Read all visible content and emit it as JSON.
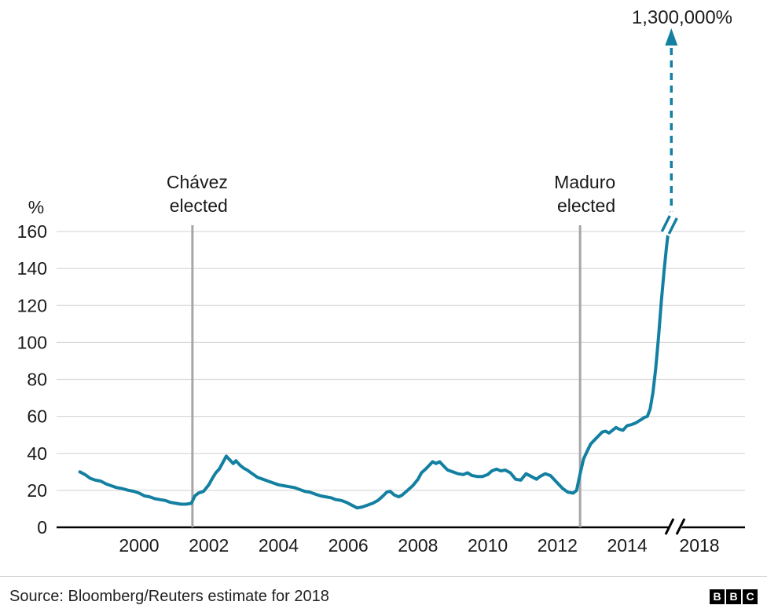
{
  "chart_data": {
    "type": "line",
    "title": "",
    "xlabel": "",
    "ylabel": "%",
    "ylim": [
      0,
      160
    ],
    "y_ticks": [
      0,
      20,
      40,
      60,
      80,
      100,
      120,
      140,
      160
    ],
    "x_ticks": [
      "2000",
      "2002",
      "2004",
      "2006",
      "2008",
      "2010",
      "2012",
      "2014"
    ],
    "x_tick_after_break": "2018",
    "axis_break": true,
    "grid": "horizontal",
    "series": [
      {
        "name": "inflation-rate",
        "color": "#1380a1",
        "points": [
          [
            1998.3,
            30
          ],
          [
            1998.45,
            28.5
          ],
          [
            1998.6,
            26.5
          ],
          [
            1998.75,
            25.5
          ],
          [
            1998.9,
            25
          ],
          [
            1999.05,
            23.5
          ],
          [
            1999.2,
            22.5
          ],
          [
            1999.35,
            21.5
          ],
          [
            1999.5,
            21
          ],
          [
            1999.7,
            20
          ],
          [
            1999.85,
            19.5
          ],
          [
            2000.0,
            18.5
          ],
          [
            2000.15,
            17
          ],
          [
            2000.3,
            16.5
          ],
          [
            2000.45,
            15.5
          ],
          [
            2000.6,
            15
          ],
          [
            2000.75,
            14.5
          ],
          [
            2000.9,
            13.5
          ],
          [
            2001.05,
            13
          ],
          [
            2001.2,
            12.5
          ],
          [
            2001.35,
            12.5
          ],
          [
            2001.5,
            13
          ],
          [
            2001.6,
            17
          ],
          [
            2001.7,
            18.5
          ],
          [
            2001.85,
            19.5
          ],
          [
            2002.0,
            23
          ],
          [
            2002.1,
            26.5
          ],
          [
            2002.2,
            29.5
          ],
          [
            2002.3,
            31.5
          ],
          [
            2002.4,
            35
          ],
          [
            2002.5,
            38.5
          ],
          [
            2002.6,
            36.5
          ],
          [
            2002.7,
            34.5
          ],
          [
            2002.78,
            36
          ],
          [
            2002.9,
            33.5
          ],
          [
            2003.0,
            32
          ],
          [
            2003.1,
            31
          ],
          [
            2003.25,
            29
          ],
          [
            2003.4,
            27
          ],
          [
            2003.55,
            26
          ],
          [
            2003.7,
            25
          ],
          [
            2003.85,
            24
          ],
          [
            2004.0,
            23
          ],
          [
            2004.15,
            22.5
          ],
          [
            2004.3,
            22
          ],
          [
            2004.45,
            21.5
          ],
          [
            2004.6,
            20.5
          ],
          [
            2004.75,
            19.5
          ],
          [
            2004.9,
            19
          ],
          [
            2005.05,
            18
          ],
          [
            2005.2,
            17
          ],
          [
            2005.35,
            16.5
          ],
          [
            2005.5,
            16
          ],
          [
            2005.65,
            15
          ],
          [
            2005.8,
            14.5
          ],
          [
            2005.95,
            13.5
          ],
          [
            2006.1,
            12
          ],
          [
            2006.25,
            10.5
          ],
          [
            2006.4,
            11
          ],
          [
            2006.55,
            12
          ],
          [
            2006.7,
            13
          ],
          [
            2006.85,
            14.5
          ],
          [
            2007.0,
            17
          ],
          [
            2007.1,
            19
          ],
          [
            2007.2,
            19.5
          ],
          [
            2007.32,
            17.5
          ],
          [
            2007.45,
            16.5
          ],
          [
            2007.55,
            17.5
          ],
          [
            2007.7,
            20
          ],
          [
            2007.85,
            22.5
          ],
          [
            2008.0,
            26
          ],
          [
            2008.1,
            29.5
          ],
          [
            2008.22,
            31.5
          ],
          [
            2008.32,
            33.5
          ],
          [
            2008.42,
            35.5
          ],
          [
            2008.52,
            34.5
          ],
          [
            2008.62,
            35.5
          ],
          [
            2008.72,
            33.5
          ],
          [
            2008.85,
            31
          ],
          [
            2009.0,
            30
          ],
          [
            2009.15,
            29
          ],
          [
            2009.3,
            28.5
          ],
          [
            2009.42,
            29.5
          ],
          [
            2009.55,
            28
          ],
          [
            2009.7,
            27.5
          ],
          [
            2009.85,
            27.5
          ],
          [
            2010.0,
            28.5
          ],
          [
            2010.12,
            30.5
          ],
          [
            2010.25,
            31.5
          ],
          [
            2010.38,
            30.5
          ],
          [
            2010.5,
            31
          ],
          [
            2010.65,
            29.5
          ],
          [
            2010.8,
            26
          ],
          [
            2010.95,
            25.5
          ],
          [
            2011.1,
            29
          ],
          [
            2011.25,
            27.5
          ],
          [
            2011.4,
            26
          ],
          [
            2011.5,
            27.5
          ],
          [
            2011.65,
            29
          ],
          [
            2011.8,
            28
          ],
          [
            2012.0,
            24
          ],
          [
            2012.15,
            21
          ],
          [
            2012.3,
            19
          ],
          [
            2012.45,
            18.5
          ],
          [
            2012.55,
            20
          ],
          [
            2012.65,
            29
          ],
          [
            2012.75,
            37
          ],
          [
            2012.85,
            41
          ],
          [
            2012.95,
            45
          ],
          [
            2013.05,
            47
          ],
          [
            2013.18,
            49.5
          ],
          [
            2013.28,
            51.5
          ],
          [
            2013.38,
            52
          ],
          [
            2013.48,
            51
          ],
          [
            2013.58,
            52.5
          ],
          [
            2013.68,
            54
          ],
          [
            2013.78,
            53
          ],
          [
            2013.88,
            52.5
          ],
          [
            2014.0,
            55
          ],
          [
            2014.12,
            55.5
          ],
          [
            2014.25,
            56.5
          ],
          [
            2014.38,
            58
          ],
          [
            2014.5,
            59.5
          ],
          [
            2014.58,
            60
          ],
          [
            2014.66,
            64
          ],
          [
            2014.74,
            73
          ],
          [
            2014.82,
            86
          ],
          [
            2014.9,
            103
          ],
          [
            2014.98,
            122
          ],
          [
            2015.06,
            139
          ],
          [
            2015.13,
            152
          ],
          [
            2015.2,
            163
          ]
        ]
      }
    ],
    "event_lines": [
      {
        "label_line1": "Chávez",
        "label_line2": "elected",
        "year": 2001.53
      },
      {
        "label_line1": "Maduro",
        "label_line2": "elected",
        "year": 2012.65
      }
    ],
    "annotation": {
      "label": "1,300,000%"
    }
  },
  "colors": {
    "line": "#1380a1",
    "gridline": "#d9d9d9",
    "event_line": "#a6a6a6",
    "axis": "#000000",
    "logo_bg": "#000000",
    "logo_fg": "#ffffff"
  },
  "footer": {
    "source": "Source: Bloomberg/Reuters estimate for 2018",
    "logo_letters": [
      "B",
      "B",
      "C"
    ]
  }
}
